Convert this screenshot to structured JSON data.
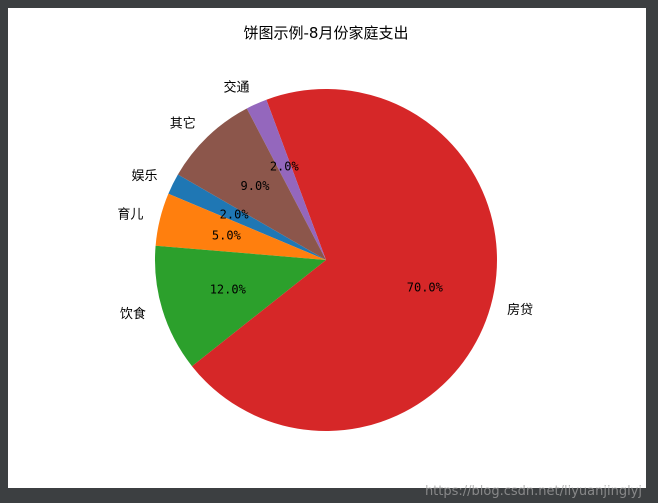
{
  "watermark": "https://blog.csdn.net/liyuanjinglyj",
  "chart_data": {
    "type": "pie",
    "title": "饼图示例-8月份家庭支出",
    "slices": [
      {
        "label": "娱乐",
        "value": 2.0,
        "pct_label": "2.0%",
        "color": "#1f77b4"
      },
      {
        "label": "育儿",
        "value": 5.0,
        "pct_label": "5.0%",
        "color": "#ff7f0e"
      },
      {
        "label": "饮食",
        "value": 12.0,
        "pct_label": "12.0%",
        "color": "#2ca02c"
      },
      {
        "label": "房贷",
        "value": 70.0,
        "pct_label": "70.0%",
        "color": "#d62728"
      },
      {
        "label": "交通",
        "value": 2.0,
        "pct_label": "2.0%",
        "color": "#9467bd"
      },
      {
        "label": "其它",
        "value": 9.0,
        "pct_label": "9.0%",
        "color": "#8c564b"
      }
    ],
    "start_angle_deg": 150,
    "direction": "counterclockwise"
  }
}
